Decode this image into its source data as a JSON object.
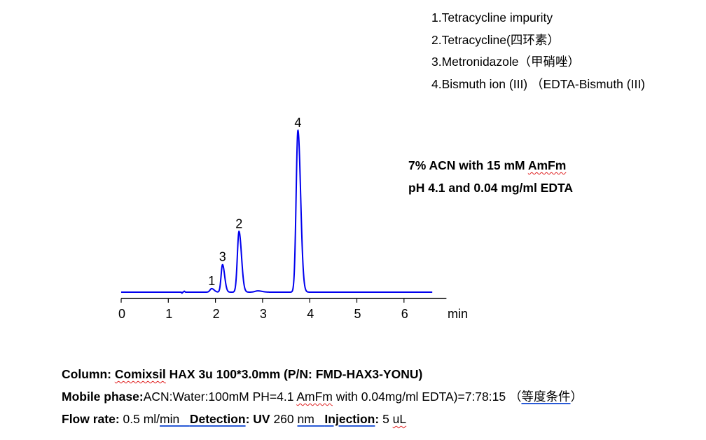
{
  "chart_data": {
    "type": "line",
    "xlabel": "min",
    "xlim": [
      0,
      6.9
    ],
    "x_ticks": [
      "0",
      "1",
      "2",
      "3",
      "4",
      "5",
      "6"
    ],
    "trace_range": [
      0,
      6.6
    ],
    "line_color": "#0000ee",
    "y_axis_shown": false,
    "y_units": "relative intensity (peak 4 = 100)",
    "peaks": [
      {
        "label": "1",
        "rt": 1.92,
        "height": 2.2,
        "sigma": 0.035
      },
      {
        "label": "3",
        "rt": 2.15,
        "height": 17,
        "sigma": 0.03
      },
      {
        "label": "2",
        "rt": 2.5,
        "height": 37.5,
        "sigma": 0.035
      },
      {
        "label": "",
        "rt": 2.9,
        "height": 0.8,
        "sigma": 0.06
      },
      {
        "label": "4",
        "rt": 3.75,
        "height": 100,
        "sigma": 0.038
      }
    ]
  },
  "legend": [
    "1.Tetracycline impurity",
    "2.Tetracycline(四环素）",
    "3.Metronidazole（甲硝唑）",
    "4.Bismuth ion (III) （EDTA-Bismuth (III)"
  ],
  "note": {
    "line1_pre": "7% ACN with 15 mM ",
    "line1_word": "AmFm",
    "line2": "pH 4.1 and 0.04 mg/ml EDTA"
  },
  "conditions": [
    [
      {
        "t": "Column: ",
        "s": "b"
      },
      {
        "t": "Comixsil",
        "s": "b wavy"
      },
      {
        "t": " HAX 3u 100*3.0mm (P/N: FMD-HAX3-YONU)",
        "s": "b"
      }
    ],
    [
      {
        "t": "Mobile phase:",
        "s": "b"
      },
      {
        "t": "ACN:Water:100mM PH=4.1 ",
        "s": ""
      },
      {
        "t": "AmFm",
        "s": "wavy"
      },
      {
        "t": " with 0.04mg/ml EDTA)=7:78:15 （",
        "s": ""
      },
      {
        "t": "等度条件",
        "s": "blue"
      },
      {
        "t": "）",
        "s": ""
      }
    ],
    [
      {
        "t": "Flow rate:",
        "s": "b"
      },
      {
        "t": " 0.5 ml/",
        "s": ""
      },
      {
        "t": "min   ",
        "s": "blue"
      },
      {
        "t": "Detection",
        "s": "b blue"
      },
      {
        "t": ": UV",
        "s": "b"
      },
      {
        "t": " 260 ",
        "s": ""
      },
      {
        "t": "nm   ",
        "s": "blue"
      },
      {
        "t": "Injection",
        "s": "b blue"
      },
      {
        "t": ":",
        "s": "b"
      },
      {
        "t": " 5 ",
        "s": ""
      },
      {
        "t": "uL",
        "s": "wavy"
      }
    ]
  ]
}
